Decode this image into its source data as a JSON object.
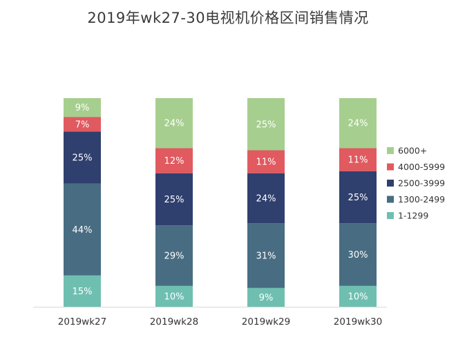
{
  "chart_data": {
    "type": "bar",
    "stacked": true,
    "percent": true,
    "title": "2019年wk27-30电视机价格区间销售情况",
    "categories": [
      "2019wk27",
      "2019wk28",
      "2019wk29",
      "2019wk30"
    ],
    "series": [
      {
        "name": "1-1299",
        "color": "#6fbfb1",
        "values": [
          15,
          10,
          9,
          10
        ]
      },
      {
        "name": "1300-2499",
        "color": "#486c82",
        "values": [
          44,
          29,
          31,
          30
        ]
      },
      {
        "name": "2500-3999",
        "color": "#2f3f6e",
        "values": [
          25,
          25,
          24,
          25
        ]
      },
      {
        "name": "4000-5999",
        "color": "#e05a60",
        "values": [
          7,
          12,
          11,
          11
        ]
      },
      {
        "name": "6000+",
        "color": "#a6cf8f",
        "values": [
          9,
          24,
          25,
          24
        ]
      }
    ],
    "legend_order": [
      "6000+",
      "4000-5999",
      "2500-3999",
      "1300-2499",
      "1-1299"
    ],
    "legend_position": "right",
    "ylim": [
      0,
      100
    ],
    "grid": false
  }
}
